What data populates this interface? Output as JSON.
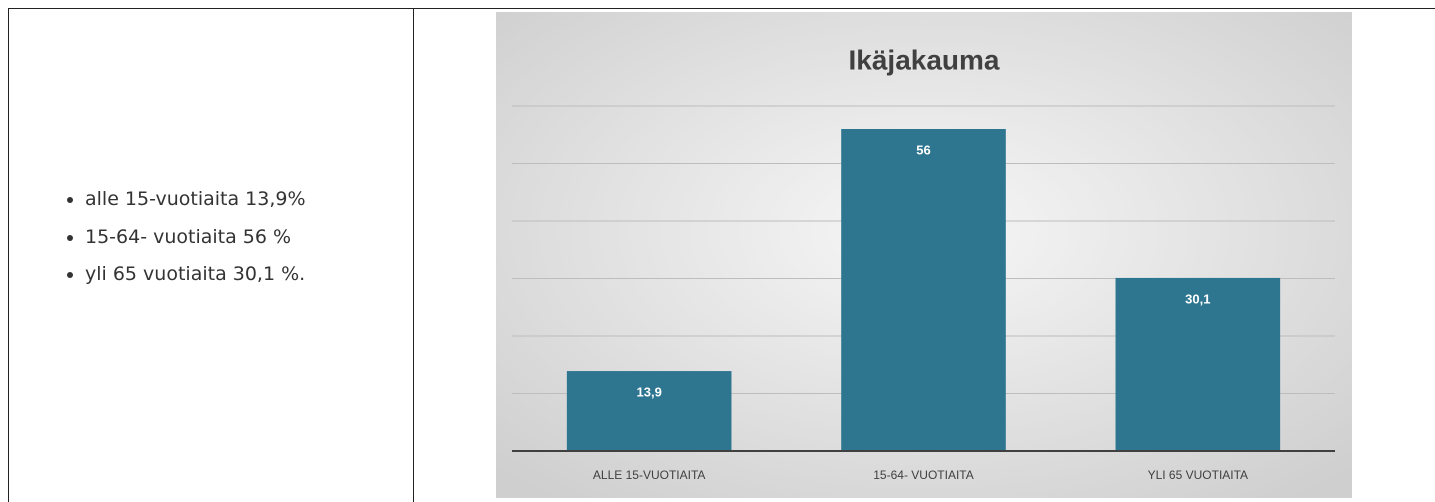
{
  "list": [
    "alle 15-vuotiaita 13,9%",
    "15-64- vuotiaita 56 %",
    "yli  65 vuotiaita 30,1 %."
  ],
  "chart_data": {
    "type": "bar",
    "title": "Ikäjakauma",
    "categories": [
      "ALLE 15-VUOTIAITA",
      "15-64- VUOTIAITA",
      "YLI 65 VUOTIAITA"
    ],
    "values": [
      13.9,
      56,
      30.1
    ],
    "value_labels": [
      "13,9",
      "56",
      "30,1"
    ],
    "color": "#2e7590",
    "ylim": [
      0,
      60
    ],
    "yticks": [
      0,
      10,
      20,
      30,
      40,
      50,
      60
    ],
    "grid": true
  }
}
